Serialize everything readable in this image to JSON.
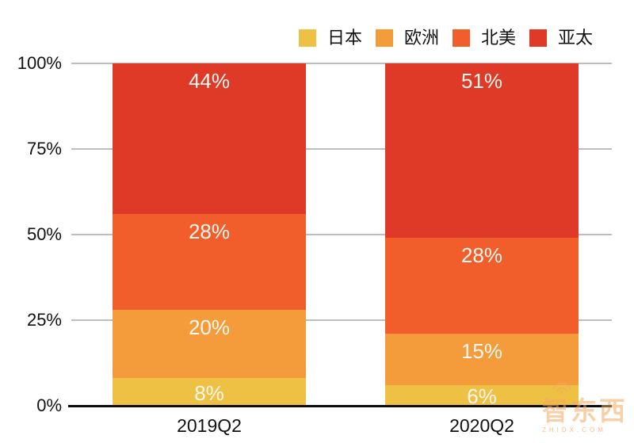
{
  "chart_data": {
    "type": "bar",
    "stacked": true,
    "unit": "%",
    "title": "",
    "categories": [
      "2019Q2",
      "2020Q2"
    ],
    "series": [
      {
        "name": "日本",
        "color": "#EEC043",
        "values": [
          8,
          6
        ]
      },
      {
        "name": "欧洲",
        "color": "#F49C3C",
        "values": [
          20,
          15
        ]
      },
      {
        "name": "北美",
        "color": "#F15E2B",
        "values": [
          28,
          28
        ]
      },
      {
        "name": "亚太",
        "color": "#DF3A28",
        "values": [
          44,
          51
        ]
      }
    ],
    "value_labels": [
      [
        "8%",
        "20%",
        "28%",
        "44%"
      ],
      [
        "6%",
        "15%",
        "28%",
        "51%"
      ]
    ],
    "y_axis": {
      "ticks": [
        "0%",
        "25%",
        "50%",
        "75%",
        "100%"
      ],
      "tick_values": [
        0,
        25,
        50,
        75,
        100
      ],
      "range": [
        0,
        100
      ],
      "grid": true
    },
    "legend_position": "top"
  },
  "watermark": {
    "icon": "wifi-signal-icon",
    "logo_text": "智东西",
    "domain_text": "ZHIDX.COM"
  }
}
